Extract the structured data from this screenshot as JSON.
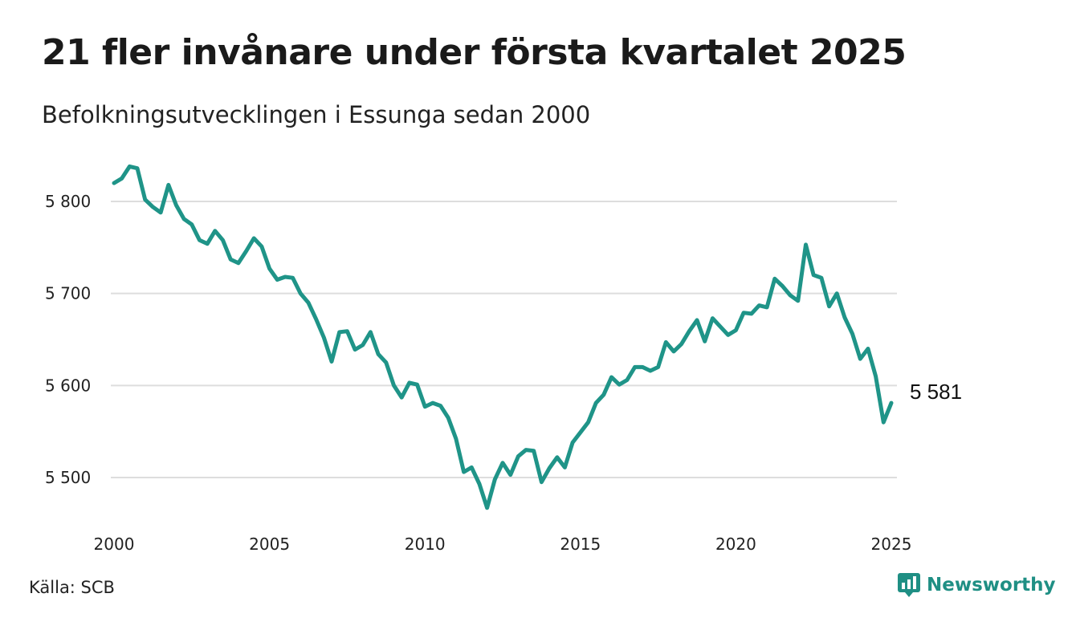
{
  "title": "21 fler invånare under första kvartalet 2025",
  "subtitle": "Befolkningsutvecklingen i Essunga sedan 2000",
  "source": "Källa: SCB",
  "brand": {
    "name": "Newsworthy",
    "color": "#1f8f84"
  },
  "colors": {
    "line": "#1f9488",
    "grid": "#dddddd"
  },
  "chart_data": {
    "type": "line",
    "x_unit": "year (quarterly)",
    "xlim": [
      2000,
      2025.25
    ],
    "ylim": [
      5450,
      5850
    ],
    "xticks": [
      2000,
      2005,
      2010,
      2015,
      2020,
      2025
    ],
    "xtick_labels": [
      "2000",
      "2005",
      "2010",
      "2015",
      "2020",
      "2025"
    ],
    "yticks": [
      5500,
      5600,
      5700,
      5800
    ],
    "ytick_labels": [
      "5 500",
      "5 600",
      "5 700",
      "5 800"
    ],
    "grid": "horizontal",
    "end_label": "5 581",
    "x": [
      2000.0,
      2000.25,
      2000.5,
      2000.75,
      2001.0,
      2001.25,
      2001.5,
      2001.75,
      2002.0,
      2002.25,
      2002.5,
      2002.75,
      2003.0,
      2003.25,
      2003.5,
      2003.75,
      2004.0,
      2004.25,
      2004.5,
      2004.75,
      2005.0,
      2005.25,
      2005.5,
      2005.75,
      2006.0,
      2006.25,
      2006.5,
      2006.75,
      2007.0,
      2007.25,
      2007.5,
      2007.75,
      2008.0,
      2008.25,
      2008.5,
      2008.75,
      2009.0,
      2009.25,
      2009.5,
      2009.75,
      2010.0,
      2010.25,
      2010.5,
      2010.75,
      2011.0,
      2011.25,
      2011.5,
      2011.75,
      2012.0,
      2012.25,
      2012.5,
      2012.75,
      2013.0,
      2013.25,
      2013.5,
      2013.75,
      2014.0,
      2014.25,
      2014.5,
      2014.75,
      2015.0,
      2015.25,
      2015.5,
      2015.75,
      2016.0,
      2016.25,
      2016.5,
      2016.75,
      2017.0,
      2017.25,
      2017.5,
      2017.75,
      2018.0,
      2018.25,
      2018.5,
      2018.75,
      2019.0,
      2019.25,
      2019.5,
      2019.75,
      2020.0,
      2020.25,
      2020.5,
      2020.75,
      2021.0,
      2021.25,
      2021.5,
      2021.75,
      2022.0,
      2022.25,
      2022.5,
      2022.75,
      2023.0,
      2023.25,
      2023.5,
      2023.75,
      2024.0,
      2024.25,
      2024.5,
      2024.75,
      2025.0
    ],
    "series": [
      {
        "values": [
          5820,
          5825,
          5838,
          5836,
          5802,
          5794,
          5788,
          5818,
          5796,
          5781,
          5775,
          5758,
          5754,
          5768,
          5758,
          5737,
          5733,
          5746,
          5760,
          5751,
          5727,
          5715,
          5718,
          5717,
          5700,
          5690,
          5672,
          5652,
          5626,
          5658,
          5659,
          5639,
          5644,
          5658,
          5634,
          5625,
          5600,
          5587,
          5603,
          5601,
          5577,
          5581,
          5578,
          5565,
          5542,
          5506,
          5511,
          5493,
          5467,
          5498,
          5516,
          5503,
          5523,
          5530,
          5529,
          5495,
          5510,
          5522,
          5511,
          5538,
          5549,
          5560,
          5581,
          5590,
          5609,
          5601,
          5606,
          5620,
          5620,
          5616,
          5620,
          5647,
          5637,
          5645,
          5659,
          5671,
          5648,
          5673,
          5664,
          5655,
          5660,
          5679,
          5678,
          5687,
          5685,
          5716,
          5708,
          5698,
          5692,
          5753,
          5720,
          5717,
          5686,
          5700,
          5674,
          5656,
          5629,
          5640,
          5610,
          5560,
          5581
        ]
      }
    ]
  }
}
